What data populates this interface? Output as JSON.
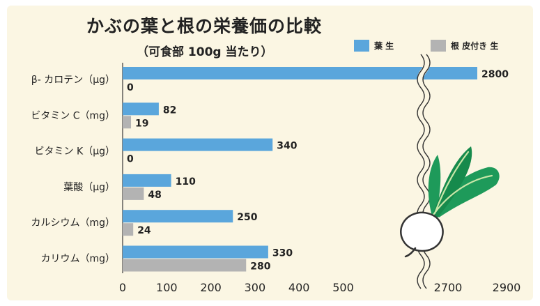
{
  "chart_data": {
    "type": "bar",
    "title": "かぶの葉と根の栄養価の比較",
    "subtitle": "（可食部 100g 当たり）",
    "orientation": "horizontal",
    "categories": [
      "β- カロテン（μg）",
      "ビタミン C（mg）",
      "ビタミン K（μg）",
      "葉酸（μg）",
      "カルシウム（mg）",
      "カリウム（mg）"
    ],
    "series": [
      {
        "name": "葉 生",
        "color": "#5aa6dc",
        "values": [
          2800,
          82,
          340,
          110,
          250,
          330
        ]
      },
      {
        "name": "根 皮付き 生",
        "color": "#b3b3b3",
        "values": [
          0,
          19,
          0,
          48,
          24,
          280
        ]
      }
    ],
    "x_ticks": [
      "0",
      "100",
      "200",
      "300",
      "400",
      "500",
      "2700",
      "2900"
    ],
    "xlim_lower": [
      0,
      550
    ],
    "xlim_upper": [
      2700,
      2900
    ],
    "axis_break": true,
    "grid": false,
    "legend_position": "top-right"
  }
}
